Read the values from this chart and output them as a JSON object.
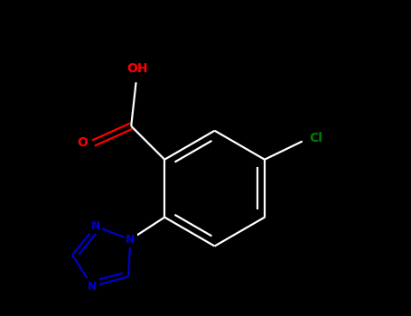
{
  "background_color": "#000000",
  "bond_color": "#ffffff",
  "atom_colors": {
    "O": "#ff0000",
    "N": "#0000cd",
    "Cl": "#008000",
    "C": "#ffffff"
  },
  "figsize": [
    4.55,
    3.5
  ],
  "dpi": 100,
  "lw": 1.6,
  "fs": 10
}
